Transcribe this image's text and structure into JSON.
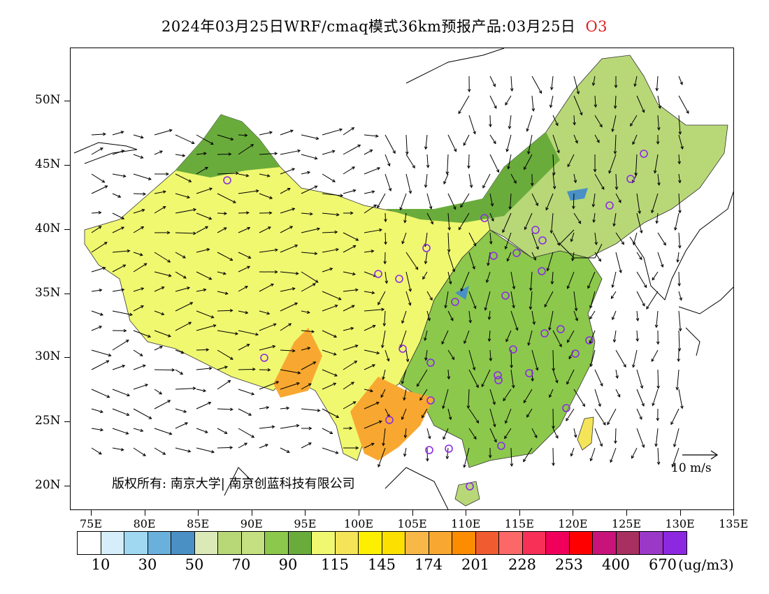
{
  "header": {
    "title": "2024年03月25日WRF/cmaq模式36km预报产品:03月25日",
    "species": "O3",
    "species_color": "#e02020"
  },
  "axes": {
    "lat_labels": [
      "50N",
      "45N",
      "40N",
      "35N",
      "30N",
      "25N",
      "20N"
    ],
    "lon_labels": [
      "75E",
      "80E",
      "85E",
      "90E",
      "95E",
      "100E",
      "105E",
      "110E",
      "115E",
      "120E",
      "125E",
      "130E",
      "135E"
    ],
    "lat_range": [
      18,
      54
    ],
    "lon_range": [
      73,
      135
    ]
  },
  "map": {
    "copyright": "版权所有: 南京大学| 南京创蓝科技有限公司",
    "wind_reference": "10 m/s"
  },
  "legend": {
    "colors": [
      "#ffffff",
      "#d6eefa",
      "#a0d8f2",
      "#6ab0dc",
      "#4a90c4",
      "#dbe9b8",
      "#b8d878",
      "#c4e080",
      "#8cc84c",
      "#6aac3c",
      "#f0f870",
      "#f4e458",
      "#fcf000",
      "#fce000",
      "#f8b848",
      "#f8a830",
      "#fc8c00",
      "#f05c30",
      "#fc6868",
      "#f83058",
      "#f0005a",
      "#ff0000",
      "#c8147a",
      "#a83060",
      "#9a38c8",
      "#8c28e0"
    ],
    "labels": [
      "10",
      "30",
      "50",
      "70",
      "90",
      "115",
      "145",
      "174",
      "201",
      "228",
      "253",
      "400",
      "670"
    ],
    "unit": "(ug/m3)"
  }
}
